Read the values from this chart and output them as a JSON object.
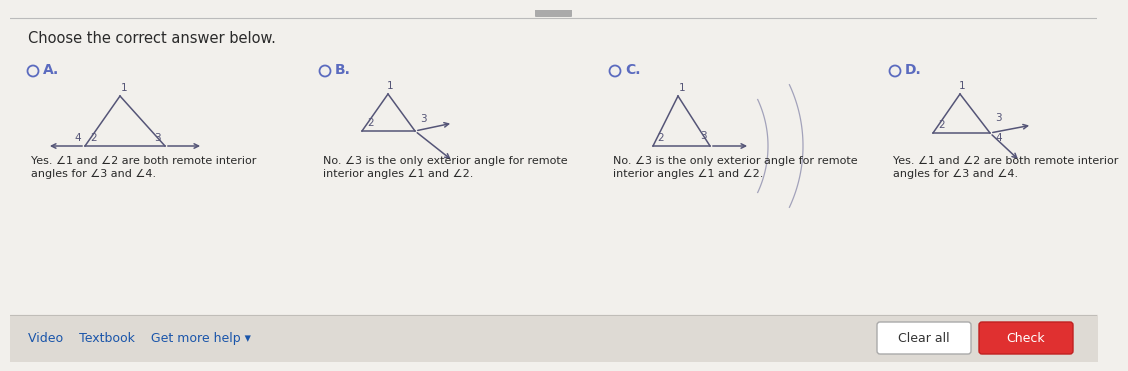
{
  "bg_color": "#ece9e3",
  "title": "Choose the correct answer below.",
  "option_labels": [
    "Yes. ∠1 and ∠2 are both remote interior\nangles for ∠3 and ∠4.",
    "No. ∠3 is the only exterior angle for remote\ninterior angles ∠1 and ∠2.",
    "No. ∠3 is the only exterior angle for remote\ninterior angles ∠1 and ∠2.",
    "Yes. ∠1 and ∠2 are both remote interior\nangles for ∠3 and ∠4."
  ],
  "footer_left": "Video    Textbook    Get more help ▾",
  "button1": "Clear all",
  "button2": "Check",
  "radio_color": "#5b6bbf",
  "text_color": "#2a2a2a",
  "line_color": "#555577",
  "label_color": "#555577",
  "footer_bg": "#dedad4",
  "white_bg": "#f2f0ec"
}
